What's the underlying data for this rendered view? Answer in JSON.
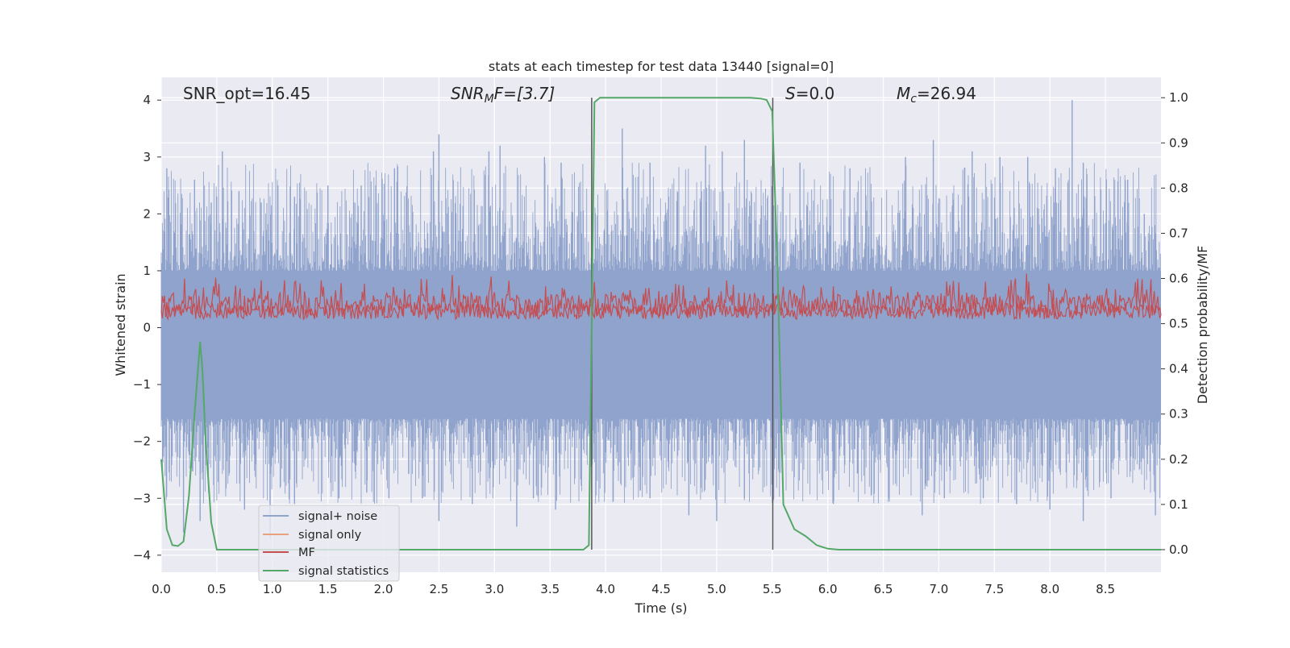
{
  "chart_data": {
    "type": "line",
    "title": "stats at each timestep for test data 13440 [signal=0]",
    "xlabel": "Time (s)",
    "ylabel": "Whitened strain",
    "y2label": "Detection probability/MF",
    "xlim": [
      0.0,
      9.0
    ],
    "ylim": [
      -4.3,
      4.4
    ],
    "y2lim": [
      -0.05,
      1.045
    ],
    "xticks": [
      "0.0",
      "0.5",
      "1.0",
      "1.5",
      "2.0",
      "2.5",
      "3.0",
      "3.5",
      "4.0",
      "4.5",
      "5.0",
      "5.5",
      "6.0",
      "6.5",
      "7.0",
      "7.5",
      "8.0",
      "8.5"
    ],
    "yticks": [
      "4",
      "3",
      "2",
      "1",
      "0",
      "−1",
      "−2",
      "−3",
      "−4"
    ],
    "y2ticks": [
      "1.0",
      "0.9",
      "0.8",
      "0.7",
      "0.6",
      "0.5",
      "0.4",
      "0.3",
      "0.2",
      "0.1",
      "0.0"
    ],
    "grid": true,
    "legend_position": "lower-left",
    "annotations": {
      "snr_opt": "SNR_opt=16.45",
      "snr_mf_main": "SNR",
      "snr_mf_sub": "M",
      "snr_mf_rest": "F=[3.7]",
      "s_main": "S",
      "s_rest": "=0.0",
      "mc_main": "M",
      "mc_sub": "c",
      "mc_rest": "=26.94"
    },
    "vlines_time": [
      3.875,
      5.505
    ],
    "series": [
      {
        "name": "signal+ noise",
        "color": "#8fa3cc",
        "description_values": "noise fluctuating roughly between -3.6 and 4.0 across 0-9 s",
        "spikes_high": [
          [
            0.05,
            2.8
          ],
          [
            0.3,
            2.6
          ],
          [
            0.45,
            2.2
          ],
          [
            0.55,
            3.1
          ],
          [
            0.7,
            2.4
          ],
          [
            0.9,
            2.2
          ],
          [
            1.05,
            2.5
          ],
          [
            1.2,
            2.3
          ],
          [
            1.5,
            2.5
          ],
          [
            1.8,
            2.5
          ],
          [
            2.1,
            2.8
          ],
          [
            2.45,
            3.1
          ],
          [
            2.5,
            3.4
          ],
          [
            2.95,
            3.1
          ],
          [
            3.05,
            3.2
          ],
          [
            3.45,
            3.0
          ],
          [
            3.6,
            2.9
          ],
          [
            4.15,
            3.5
          ],
          [
            4.4,
            2.9
          ],
          [
            4.9,
            3.2
          ],
          [
            5.05,
            3.1
          ],
          [
            5.25,
            3.3
          ],
          [
            5.75,
            2.9
          ],
          [
            6.2,
            2.8
          ],
          [
            6.7,
            3.0
          ],
          [
            6.95,
            3.3
          ],
          [
            7.3,
            3.1
          ],
          [
            7.55,
            3.0
          ],
          [
            7.8,
            3.0
          ],
          [
            8.05,
            2.8
          ],
          [
            8.2,
            4.0
          ],
          [
            8.3,
            2.9
          ],
          [
            8.7,
            2.6
          ],
          [
            8.85,
            2.0
          ]
        ],
        "spikes_low": [
          [
            0.2,
            -3.6
          ],
          [
            0.35,
            -3.4
          ],
          [
            0.75,
            -3.2
          ],
          [
            0.98,
            -3.7
          ],
          [
            1.2,
            -3.1
          ],
          [
            1.6,
            -3.0
          ],
          [
            1.85,
            -2.9
          ],
          [
            2.05,
            -3.0
          ],
          [
            2.35,
            -3.0
          ],
          [
            2.5,
            -3.4
          ],
          [
            2.8,
            -3.1
          ],
          [
            3.2,
            -3.5
          ],
          [
            3.35,
            -3.0
          ],
          [
            3.55,
            -3.2
          ],
          [
            4.4,
            -3.0
          ],
          [
            4.75,
            -3.3
          ],
          [
            5.0,
            -3.4
          ],
          [
            5.25,
            -3.0
          ],
          [
            6.05,
            -3.1
          ],
          [
            6.55,
            -3.0
          ],
          [
            6.85,
            -3.3
          ],
          [
            7.05,
            -3.0
          ],
          [
            7.4,
            -3.0
          ],
          [
            7.7,
            -3.1
          ],
          [
            8.0,
            -3.2
          ],
          [
            8.3,
            -3.4
          ],
          [
            8.55,
            -3.0
          ],
          [
            8.95,
            -3.3
          ]
        ]
      },
      {
        "name": "signal only",
        "color": "#e8a07f",
        "x": [],
        "y": []
      },
      {
        "name": "MF",
        "color": "#c44e52",
        "axis": "right",
        "band": [
          0.51,
          0.59
        ]
      },
      {
        "name": "signal statistics",
        "color": "#55a868",
        "axis": "right",
        "x": [
          0.0,
          0.05,
          0.1,
          0.15,
          0.2,
          0.25,
          0.3,
          0.35,
          0.37,
          0.4,
          0.45,
          0.5,
          1.0,
          2.0,
          3.0,
          3.8,
          3.85,
          3.875,
          3.9,
          3.95,
          4.0,
          4.5,
          5.0,
          5.3,
          5.4,
          5.45,
          5.5,
          5.55,
          5.6,
          5.7,
          5.8,
          5.9,
          6.0,
          6.1,
          6.5,
          7.0,
          8.0,
          9.0
        ],
        "y": [
          0.2,
          0.045,
          0.01,
          0.008,
          0.018,
          0.12,
          0.3,
          0.46,
          0.4,
          0.24,
          0.06,
          0.0,
          0.0,
          0.0,
          0.0,
          0.0,
          0.01,
          0.5,
          0.99,
          1.0,
          1.0,
          1.0,
          1.0,
          1.0,
          0.998,
          0.995,
          0.97,
          0.6,
          0.1,
          0.045,
          0.03,
          0.01,
          0.002,
          0.0,
          0.0,
          0.0,
          0.0,
          0.0
        ]
      }
    ]
  }
}
